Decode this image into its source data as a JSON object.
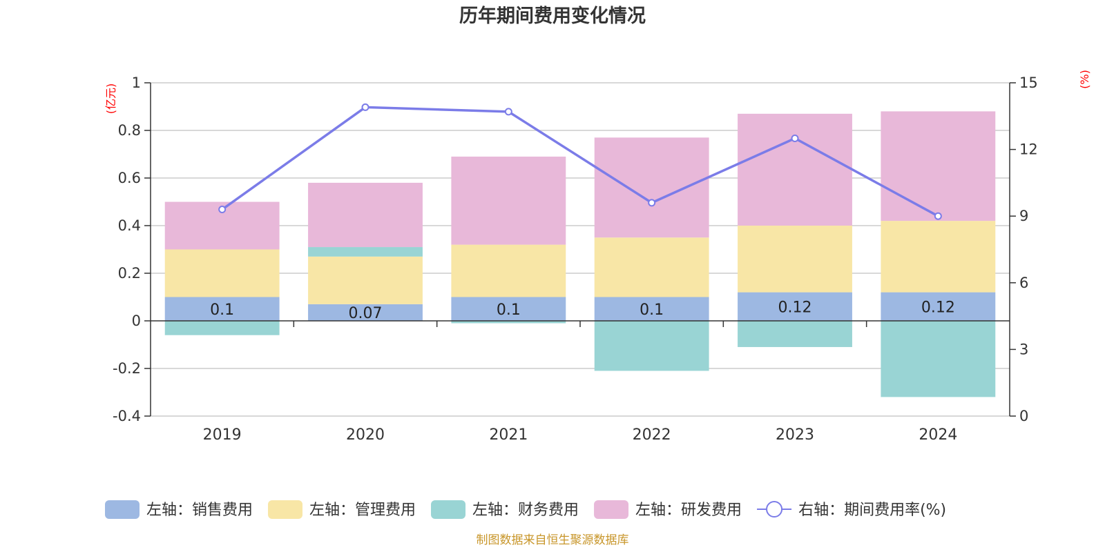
{
  "chart_data": {
    "type": "bar",
    "title": "历年期间费用变化情况",
    "categories": [
      "2019",
      "2020",
      "2021",
      "2022",
      "2023",
      "2024"
    ],
    "left_axis": {
      "unit": "(亿元)",
      "ylim": [
        -0.4,
        1
      ],
      "ticks": [
        "1",
        "0.8",
        "0.6",
        "0.4",
        "0.2",
        "0",
        "-0.2",
        "-0.4"
      ]
    },
    "right_axis": {
      "unit": "(%)",
      "ylim": [
        0,
        15
      ],
      "ticks": [
        "15",
        "12",
        "9",
        "6",
        "3",
        "0"
      ]
    },
    "series": [
      {
        "name": "左轴：销售费用",
        "kind": "bar",
        "stack": true,
        "color": "#9db8e2",
        "values": [
          0.1,
          0.07,
          0.1,
          0.1,
          0.12,
          0.12
        ],
        "labels": [
          "0.1",
          "0.07",
          "0.1",
          "0.1",
          "0.12",
          "0.12"
        ]
      },
      {
        "name": "左轴：管理费用",
        "kind": "bar",
        "stack": true,
        "color": "#f8e6a6",
        "values": [
          0.2,
          0.2,
          0.22,
          0.25,
          0.28,
          0.3
        ]
      },
      {
        "name": "左轴：财务费用",
        "kind": "bar",
        "stack": true,
        "color": "#99d4d4",
        "values": [
          -0.06,
          0.04,
          -0.01,
          -0.21,
          -0.11,
          -0.32
        ]
      },
      {
        "name": "左轴：研发费用",
        "kind": "bar",
        "stack": true,
        "color": "#e8b8d9",
        "values": [
          0.2,
          0.27,
          0.37,
          0.42,
          0.47,
          0.46
        ]
      },
      {
        "name": "右轴：期间费用率(%)",
        "kind": "line",
        "axis": "right",
        "color": "#7b7ce8",
        "values": [
          9.3,
          13.9,
          13.7,
          9.6,
          12.5,
          9.0
        ]
      }
    ],
    "grid": true,
    "legend_position": "bottom"
  },
  "source_note": "制图数据来自恒生聚源数据库"
}
